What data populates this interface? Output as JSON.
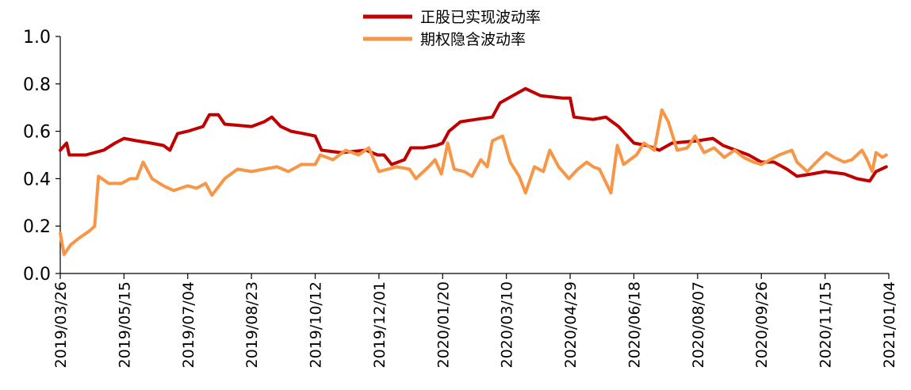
{
  "chart_data": {
    "type": "line",
    "title": "",
    "xlabel": "",
    "ylabel": "",
    "ylim": [
      0,
      1.0
    ],
    "yticks": [
      "0.0",
      "0.2",
      "0.4",
      "0.6",
      "0.8",
      "1.0"
    ],
    "xticks": [
      "2019/03/26",
      "2019/05/15",
      "2019/07/04",
      "2019/08/23",
      "2019/10/12",
      "2019/12/01",
      "2020/01/20",
      "2020/03/10",
      "2020/04/29",
      "2020/06/18",
      "2020/08/07",
      "2020/09/26",
      "2020/11/15",
      "2021/01/04"
    ],
    "grid": false,
    "legend_position": "top-center",
    "series": [
      {
        "name": "正股已实现波动率",
        "color": "#C00000",
        "points": [
          [
            "2019/03/26",
            0.52
          ],
          [
            "2019/03/31",
            0.55
          ],
          [
            "2019/04/02",
            0.5
          ],
          [
            "2019/04/15",
            0.5
          ],
          [
            "2019/04/29",
            0.52
          ],
          [
            "2019/05/08",
            0.55
          ],
          [
            "2019/05/15",
            0.57
          ],
          [
            "2019/05/25",
            0.56
          ],
          [
            "2019/06/05",
            0.55
          ],
          [
            "2019/06/15",
            0.54
          ],
          [
            "2019/06/20",
            0.52
          ],
          [
            "2019/06/26",
            0.59
          ],
          [
            "2019/07/04",
            0.6
          ],
          [
            "2019/07/16",
            0.62
          ],
          [
            "2019/07/21",
            0.67
          ],
          [
            "2019/07/28",
            0.67
          ],
          [
            "2019/08/02",
            0.63
          ],
          [
            "2019/08/23",
            0.62
          ],
          [
            "2019/09/02",
            0.64
          ],
          [
            "2019/09/08",
            0.66
          ],
          [
            "2019/09/15",
            0.62
          ],
          [
            "2019/09/23",
            0.6
          ],
          [
            "2019/10/03",
            0.59
          ],
          [
            "2019/10/12",
            0.58
          ],
          [
            "2019/10/17",
            0.52
          ],
          [
            "2019/11/01",
            0.51
          ],
          [
            "2019/11/21",
            0.52
          ],
          [
            "2019/11/30",
            0.5
          ],
          [
            "2019/12/05",
            0.5
          ],
          [
            "2019/12/11",
            0.46
          ],
          [
            "2019/12/21",
            0.48
          ],
          [
            "2019/12/26",
            0.53
          ],
          [
            "2020/01/05",
            0.53
          ],
          [
            "2020/01/15",
            0.54
          ],
          [
            "2020/01/20",
            0.55
          ],
          [
            "2020/01/25",
            0.6
          ],
          [
            "2020/02/03",
            0.64
          ],
          [
            "2020/02/15",
            0.65
          ],
          [
            "2020/02/28",
            0.66
          ],
          [
            "2020/03/05",
            0.72
          ],
          [
            "2020/03/15",
            0.75
          ],
          [
            "2020/03/25",
            0.78
          ],
          [
            "2020/04/06",
            0.75
          ],
          [
            "2020/04/23",
            0.74
          ],
          [
            "2020/04/29",
            0.74
          ],
          [
            "2020/05/02",
            0.66
          ],
          [
            "2020/05/17",
            0.65
          ],
          [
            "2020/05/27",
            0.66
          ],
          [
            "2020/06/01",
            0.64
          ],
          [
            "2020/06/06",
            0.62
          ],
          [
            "2020/06/18",
            0.55
          ],
          [
            "2020/06/28",
            0.54
          ],
          [
            "2020/07/08",
            0.52
          ],
          [
            "2020/07/18",
            0.55
          ],
          [
            "2020/08/07",
            0.56
          ],
          [
            "2020/08/19",
            0.57
          ],
          [
            "2020/08/27",
            0.54
          ],
          [
            "2020/09/06",
            0.52
          ],
          [
            "2020/09/16",
            0.5
          ],
          [
            "2020/09/26",
            0.47
          ],
          [
            "2020/10/06",
            0.47
          ],
          [
            "2020/10/16",
            0.44
          ],
          [
            "2020/10/24",
            0.41
          ],
          [
            "2020/11/05",
            0.42
          ],
          [
            "2020/11/15",
            0.43
          ],
          [
            "2020/11/30",
            0.42
          ],
          [
            "2020/12/10",
            0.4
          ],
          [
            "2020/12/20",
            0.39
          ],
          [
            "2020/12/25",
            0.43
          ],
          [
            "2021/01/02",
            0.45
          ]
        ]
      },
      {
        "name": "期权隐含波动率",
        "color": "#F79646",
        "points": [
          [
            "2019/03/26",
            0.17
          ],
          [
            "2019/03/29",
            0.08
          ],
          [
            "2019/04/03",
            0.12
          ],
          [
            "2019/04/10",
            0.15
          ],
          [
            "2019/04/18",
            0.18
          ],
          [
            "2019/04/22",
            0.2
          ],
          [
            "2019/04/25",
            0.41
          ],
          [
            "2019/05/03",
            0.38
          ],
          [
            "2019/05/13",
            0.38
          ],
          [
            "2019/05/20",
            0.4
          ],
          [
            "2019/05/25",
            0.4
          ],
          [
            "2019/05/30",
            0.47
          ],
          [
            "2019/06/06",
            0.4
          ],
          [
            "2019/06/15",
            0.37
          ],
          [
            "2019/06/23",
            0.35
          ],
          [
            "2019/07/04",
            0.37
          ],
          [
            "2019/07/11",
            0.36
          ],
          [
            "2019/07/18",
            0.38
          ],
          [
            "2019/07/23",
            0.33
          ],
          [
            "2019/08/02",
            0.4
          ],
          [
            "2019/08/12",
            0.44
          ],
          [
            "2019/08/23",
            0.43
          ],
          [
            "2019/09/02",
            0.44
          ],
          [
            "2019/09/12",
            0.45
          ],
          [
            "2019/09/21",
            0.43
          ],
          [
            "2019/10/01",
            0.46
          ],
          [
            "2019/10/12",
            0.46
          ],
          [
            "2019/10/16",
            0.5
          ],
          [
            "2019/10/26",
            0.48
          ],
          [
            "2019/11/05",
            0.52
          ],
          [
            "2019/11/15",
            0.5
          ],
          [
            "2019/11/23",
            0.53
          ],
          [
            "2019/12/01",
            0.43
          ],
          [
            "2019/12/15",
            0.45
          ],
          [
            "2019/12/25",
            0.44
          ],
          [
            "2019/12/30",
            0.4
          ],
          [
            "2020/01/09",
            0.45
          ],
          [
            "2020/01/14",
            0.48
          ],
          [
            "2020/01/19",
            0.42
          ],
          [
            "2020/01/24",
            0.55
          ],
          [
            "2020/01/29",
            0.44
          ],
          [
            "2020/02/06",
            0.43
          ],
          [
            "2020/02/12",
            0.41
          ],
          [
            "2020/02/19",
            0.48
          ],
          [
            "2020/02/24",
            0.45
          ],
          [
            "2020/02/28",
            0.56
          ],
          [
            "2020/03/07",
            0.58
          ],
          [
            "2020/03/13",
            0.47
          ],
          [
            "2020/03/20",
            0.41
          ],
          [
            "2020/03/25",
            0.34
          ],
          [
            "2020/04/01",
            0.45
          ],
          [
            "2020/04/08",
            0.43
          ],
          [
            "2020/04/13",
            0.52
          ],
          [
            "2020/04/20",
            0.45
          ],
          [
            "2020/04/28",
            0.4
          ],
          [
            "2020/05/05",
            0.44
          ],
          [
            "2020/05/12",
            0.47
          ],
          [
            "2020/05/17",
            0.45
          ],
          [
            "2020/05/22",
            0.44
          ],
          [
            "2020/05/31",
            0.34
          ],
          [
            "2020/06/05",
            0.54
          ],
          [
            "2020/06/10",
            0.46
          ],
          [
            "2020/06/15",
            0.48
          ],
          [
            "2020/06/20",
            0.5
          ],
          [
            "2020/06/26",
            0.55
          ],
          [
            "2020/07/04",
            0.52
          ],
          [
            "2020/07/10",
            0.69
          ],
          [
            "2020/07/15",
            0.64
          ],
          [
            "2020/07/22",
            0.52
          ],
          [
            "2020/07/30",
            0.53
          ],
          [
            "2020/08/05",
            0.58
          ],
          [
            "2020/08/12",
            0.51
          ],
          [
            "2020/08/20",
            0.53
          ],
          [
            "2020/08/28",
            0.49
          ],
          [
            "2020/09/05",
            0.52
          ],
          [
            "2020/09/12",
            0.49
          ],
          [
            "2020/09/20",
            0.47
          ],
          [
            "2020/09/26",
            0.46
          ],
          [
            "2020/10/10",
            0.5
          ],
          [
            "2020/10/20",
            0.52
          ],
          [
            "2020/10/24",
            0.47
          ],
          [
            "2020/11/01",
            0.43
          ],
          [
            "2020/11/10",
            0.48
          ],
          [
            "2020/11/16",
            0.51
          ],
          [
            "2020/11/22",
            0.49
          ],
          [
            "2020/11/30",
            0.47
          ],
          [
            "2020/12/06",
            0.48
          ],
          [
            "2020/12/14",
            0.52
          ],
          [
            "2020/12/18",
            0.48
          ],
          [
            "2020/12/22",
            0.43
          ],
          [
            "2020/12/25",
            0.51
          ],
          [
            "2020/12/30",
            0.49
          ],
          [
            "2021/01/02",
            0.5
          ]
        ]
      }
    ]
  }
}
